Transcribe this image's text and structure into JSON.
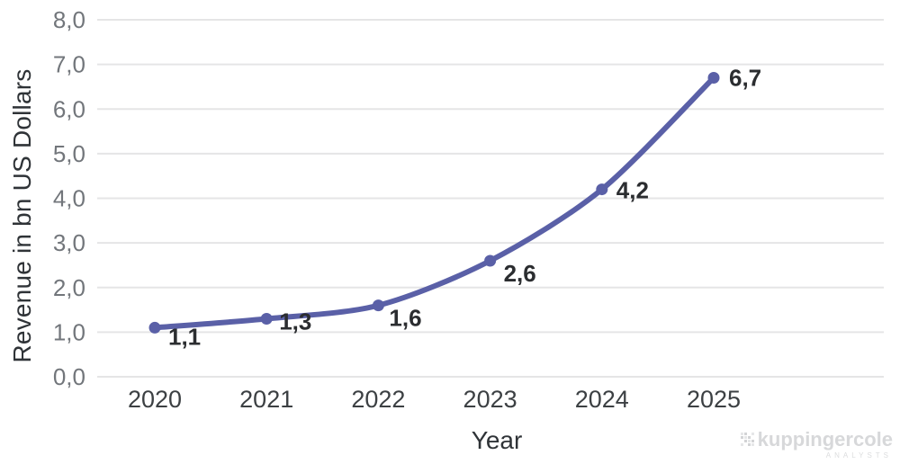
{
  "chart_data": {
    "type": "line",
    "title": "",
    "categories": [
      "2020",
      "2021",
      "2022",
      "2023",
      "2024",
      "2025"
    ],
    "values": [
      1.1,
      1.3,
      1.6,
      2.6,
      4.2,
      6.7
    ],
    "point_labels": [
      "1,1",
      "1,3",
      "1,6",
      "2,6",
      "4,2",
      "6,7"
    ],
    "xlabel": "Year",
    "ylabel": "Revenue in bn US Dollars",
    "ylim": [
      0,
      8
    ],
    "ytick_labels": [
      "0,0",
      "1,0",
      "2,0",
      "3,0",
      "4,0",
      "5,0",
      "6,0",
      "7,0",
      "8,0"
    ],
    "grid": true,
    "legend": "none",
    "colors": {
      "line": "#5a60a7",
      "marker": "#5a60a7",
      "gridline": "#e5e5e6",
      "y_tick": "#72767b",
      "x_tick": "#3c4043",
      "data_label": "#2b2d30",
      "axis_title": "#2f3337"
    }
  },
  "branding": {
    "logo_text": "kuppingercole",
    "logo_subtext": "ANALYSTS"
  }
}
